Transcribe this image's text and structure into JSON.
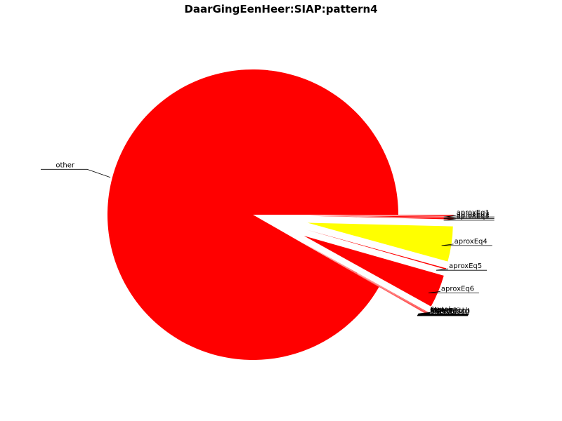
{
  "chart_data": {
    "type": "pie",
    "title": "DaarGingEenHeer:SIAP:pattern4",
    "colors": {
      "red": "#ff0000",
      "yellow": "#ffff00"
    },
    "slices": [
      {
        "label": "other",
        "value": 91.66,
        "color": "#ff0000",
        "exploded": false
      },
      {
        "label": "aproxEq1",
        "value": 0.13,
        "color": "#ff0000",
        "exploded": true
      },
      {
        "label": "aproxEq2",
        "value": 0.13,
        "color": "#ff0000",
        "exploded": true
      },
      {
        "label": "aproxEq3",
        "value": 0.13,
        "color": "#ff0000",
        "exploded": true
      },
      {
        "label": "aproxEq4",
        "value": 3.9,
        "color": "#ffff00",
        "exploded": true
      },
      {
        "label": "aproxEq5",
        "value": 0.13,
        "color": "#ff0000",
        "exploded": true
      },
      {
        "label": "aproxEq6",
        "value": 3.66,
        "color": "#ff0000",
        "exploded": true
      },
      {
        "label": "equal",
        "value": 0.03,
        "color": "#ff0000",
        "exploded": true
      },
      {
        "label": "faster",
        "value": 0.03,
        "color": "#ff0000",
        "exploded": true
      },
      {
        "label": "slower",
        "value": 0.03,
        "color": "#ff0000",
        "exploded": true
      },
      {
        "label": "higherPitch",
        "value": 0.03,
        "color": "#ff0000",
        "exploded": true
      },
      {
        "label": "lowerPitch",
        "value": 0.03,
        "color": "#ff0000",
        "exploded": true
      },
      {
        "label": "transposed",
        "value": 0.03,
        "color": "#ff0000",
        "exploded": true
      },
      {
        "label": "interval",
        "value": 0.03,
        "color": "#ff0000",
        "exploded": true
      }
    ]
  }
}
